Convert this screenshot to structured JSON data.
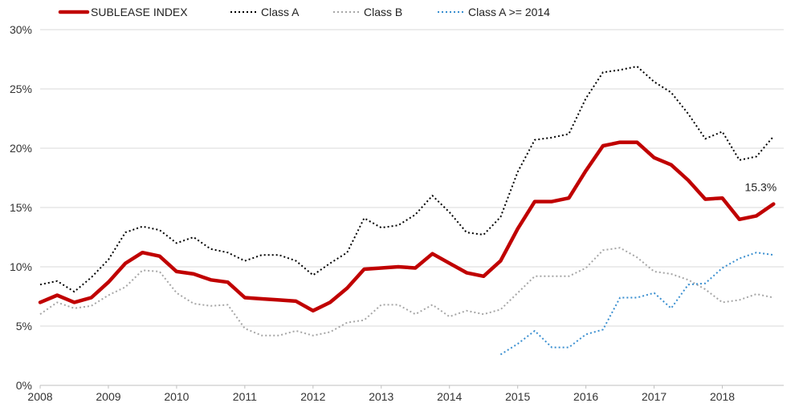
{
  "chart_data": {
    "type": "line",
    "title": "",
    "xlabel": "",
    "ylabel": "",
    "x_ticks": [
      "2008",
      "2009",
      "2010",
      "2011",
      "2012",
      "2013",
      "2014",
      "2015",
      "2016",
      "2017",
      "2018"
    ],
    "y_ticks": [
      "0%",
      "5%",
      "10%",
      "15%",
      "20%",
      "25%",
      "30%"
    ],
    "ylim": [
      0,
      30
    ],
    "xlim": [
      2008,
      2018.9
    ],
    "grid": "horizontal",
    "legend_position": "top",
    "series": [
      {
        "name": "SUBLEASE INDEX",
        "color": "#c00000",
        "style": "solid",
        "x": [
          2008.0,
          2008.25,
          2008.5,
          2008.75,
          2009.0,
          2009.25,
          2009.5,
          2009.75,
          2010.0,
          2010.25,
          2010.5,
          2010.75,
          2011.0,
          2011.25,
          2011.5,
          2011.75,
          2012.0,
          2012.25,
          2012.5,
          2012.75,
          2013.0,
          2013.25,
          2013.5,
          2013.75,
          2014.0,
          2014.25,
          2014.5,
          2014.75,
          2015.0,
          2015.25,
          2015.5,
          2015.75,
          2016.0,
          2016.25,
          2016.5,
          2016.75,
          2017.0,
          2017.25,
          2017.5,
          2017.75,
          2018.0,
          2018.25,
          2018.5,
          2018.75
        ],
        "values": [
          7.0,
          7.6,
          7.0,
          7.4,
          8.7,
          10.3,
          11.2,
          10.9,
          9.6,
          9.4,
          8.9,
          8.7,
          7.4,
          7.3,
          7.2,
          7.1,
          6.3,
          7.0,
          8.2,
          9.8,
          9.9,
          10.0,
          9.9,
          11.1,
          10.3,
          9.5,
          9.2,
          10.5,
          13.2,
          15.5,
          15.5,
          15.8,
          18.1,
          20.2,
          20.5,
          20.5,
          19.2,
          18.6,
          17.3,
          15.7,
          15.8,
          14.0,
          14.3,
          15.3
        ]
      },
      {
        "name": "Class A",
        "color": "#000000",
        "style": "dotted",
        "x": [
          2008.0,
          2008.25,
          2008.5,
          2008.75,
          2009.0,
          2009.25,
          2009.5,
          2009.75,
          2010.0,
          2010.25,
          2010.5,
          2010.75,
          2011.0,
          2011.25,
          2011.5,
          2011.75,
          2012.0,
          2012.25,
          2012.5,
          2012.75,
          2013.0,
          2013.25,
          2013.5,
          2013.75,
          2014.0,
          2014.25,
          2014.5,
          2014.75,
          2015.0,
          2015.25,
          2015.5,
          2015.75,
          2016.0,
          2016.25,
          2016.5,
          2016.75,
          2017.0,
          2017.25,
          2017.5,
          2017.75,
          2018.0,
          2018.25,
          2018.5,
          2018.75
        ],
        "values": [
          8.5,
          8.8,
          7.9,
          9.1,
          10.6,
          12.9,
          13.4,
          13.1,
          12.0,
          12.5,
          11.5,
          11.2,
          10.5,
          11.0,
          11.0,
          10.5,
          9.3,
          10.3,
          11.2,
          14.1,
          13.3,
          13.5,
          14.4,
          16.0,
          14.6,
          12.9,
          12.7,
          14.2,
          18.0,
          20.7,
          20.9,
          21.2,
          24.2,
          26.4,
          26.6,
          26.9,
          25.6,
          24.7,
          22.9,
          20.8,
          21.4,
          19.0,
          19.3,
          21.0
        ]
      },
      {
        "name": "Class B",
        "color": "#a6a6a6",
        "style": "dotted",
        "x": [
          2008.0,
          2008.25,
          2008.5,
          2008.75,
          2009.0,
          2009.25,
          2009.5,
          2009.75,
          2010.0,
          2010.25,
          2010.5,
          2010.75,
          2011.0,
          2011.25,
          2011.5,
          2011.75,
          2012.0,
          2012.25,
          2012.5,
          2012.75,
          2013.0,
          2013.25,
          2013.5,
          2013.75,
          2014.0,
          2014.25,
          2014.5,
          2014.75,
          2015.0,
          2015.25,
          2015.5,
          2015.75,
          2016.0,
          2016.25,
          2016.5,
          2016.75,
          2017.0,
          2017.25,
          2017.5,
          2017.75,
          2018.0,
          2018.25,
          2018.5,
          2018.75
        ],
        "values": [
          6.0,
          7.0,
          6.5,
          6.7,
          7.6,
          8.3,
          9.7,
          9.6,
          7.8,
          6.9,
          6.7,
          6.8,
          4.8,
          4.2,
          4.2,
          4.6,
          4.2,
          4.5,
          5.3,
          5.5,
          6.8,
          6.8,
          6.0,
          6.8,
          5.8,
          6.3,
          6.0,
          6.4,
          7.8,
          9.2,
          9.2,
          9.2,
          9.9,
          11.4,
          11.6,
          10.8,
          9.6,
          9.4,
          8.9,
          8.1,
          7.0,
          7.2,
          7.7,
          7.4
        ]
      },
      {
        "name": "Class A >= 2014",
        "color": "#3a8fd0",
        "style": "dotted",
        "x": [
          2014.75,
          2015.0,
          2015.25,
          2015.5,
          2015.75,
          2016.0,
          2016.25,
          2016.5,
          2016.75,
          2017.0,
          2017.25,
          2017.5,
          2017.75,
          2018.0,
          2018.25,
          2018.5,
          2018.75
        ],
        "values": [
          2.6,
          3.5,
          4.6,
          3.2,
          3.2,
          4.3,
          4.7,
          7.4,
          7.4,
          7.8,
          6.5,
          8.5,
          8.6,
          9.9,
          10.7,
          11.2,
          11.0
        ]
      }
    ],
    "annotations": [
      {
        "text": "15.3%",
        "series": "SUBLEASE INDEX",
        "x": 2018.75,
        "y": 15.3
      }
    ]
  }
}
